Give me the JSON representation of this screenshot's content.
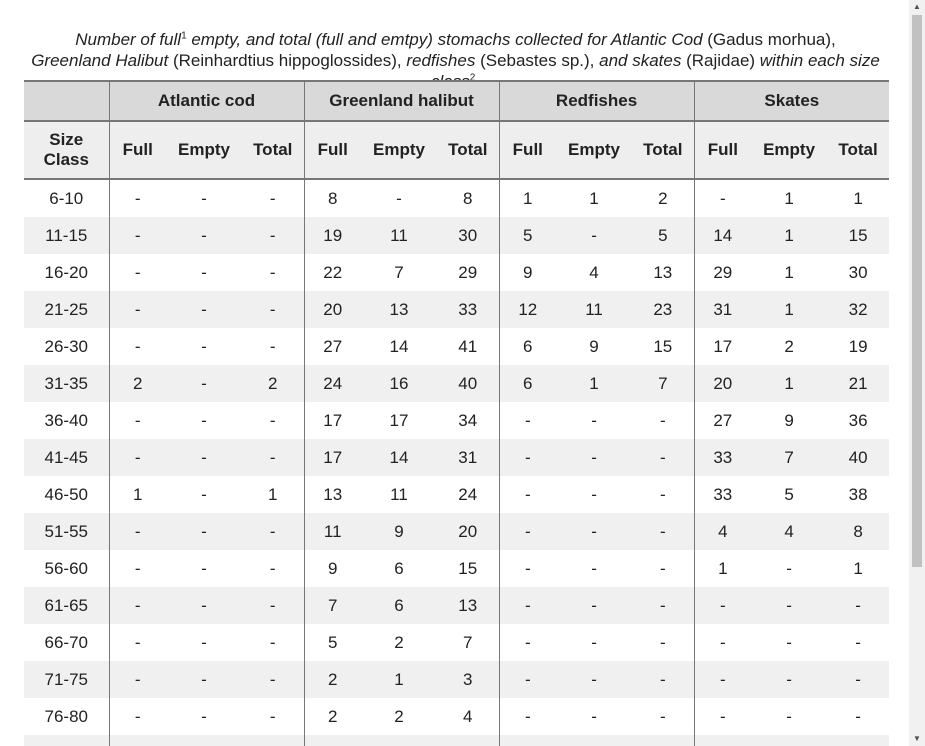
{
  "caption": {
    "p1": "Number of full",
    "sup1": "1",
    "p2": " empty, and total (full and emtpy) stomachs collected for Atlantic Cod ",
    "p3": "(Gadus morhua),",
    "p4": "Greenland Halibut",
    "p5": " (Reinhardtius hippoglossides), ",
    "p6": "redfishes",
    "p7": " (Sebastes sp.), ",
    "p8": "and skates",
    "p9": " (Rajidae) ",
    "p10": "within each size class",
    "sup2": "2",
    "p11": "."
  },
  "table": {
    "groups": [
      "Atlantic cod",
      "Greenland halibut",
      "Redfishes",
      "Skates"
    ],
    "size_class_header": [
      "Size",
      "Class"
    ],
    "sub_headers": [
      "Full",
      "Empty",
      "Total"
    ],
    "rows": [
      [
        "6-10",
        "-",
        "-",
        "-",
        "8",
        "-",
        "8",
        "1",
        "1",
        "2",
        "-",
        "1",
        "1"
      ],
      [
        "11-15",
        "-",
        "-",
        "-",
        "19",
        "11",
        "30",
        "5",
        "-",
        "5",
        "14",
        "1",
        "15"
      ],
      [
        "16-20",
        "-",
        "-",
        "-",
        "22",
        "7",
        "29",
        "9",
        "4",
        "13",
        "29",
        "1",
        "30"
      ],
      [
        "21-25",
        "-",
        "-",
        "-",
        "20",
        "13",
        "33",
        "12",
        "11",
        "23",
        "31",
        "1",
        "32"
      ],
      [
        "26-30",
        "-",
        "-",
        "-",
        "27",
        "14",
        "41",
        "6",
        "9",
        "15",
        "17",
        "2",
        "19"
      ],
      [
        "31-35",
        "2",
        "-",
        "2",
        "24",
        "16",
        "40",
        "6",
        "1",
        "7",
        "20",
        "1",
        "21"
      ],
      [
        "36-40",
        "-",
        "-",
        "-",
        "17",
        "17",
        "34",
        "-",
        "-",
        "-",
        "27",
        "9",
        "36"
      ],
      [
        "41-45",
        "-",
        "-",
        "-",
        "17",
        "14",
        "31",
        "-",
        "-",
        "-",
        "33",
        "7",
        "40"
      ],
      [
        "46-50",
        "1",
        "-",
        "1",
        "13",
        "11",
        "24",
        "-",
        "-",
        "-",
        "33",
        "5",
        "38"
      ],
      [
        "51-55",
        "-",
        "-",
        "-",
        "11",
        "9",
        "20",
        "-",
        "-",
        "-",
        "4",
        "4",
        "8"
      ],
      [
        "56-60",
        "-",
        "-",
        "-",
        "9",
        "6",
        "15",
        "-",
        "-",
        "-",
        "1",
        "-",
        "1"
      ],
      [
        "61-65",
        "-",
        "-",
        "-",
        "7",
        "6",
        "13",
        "-",
        "-",
        "-",
        "-",
        "-",
        "-"
      ],
      [
        "66-70",
        "-",
        "-",
        "-",
        "5",
        "2",
        "7",
        "-",
        "-",
        "-",
        "-",
        "-",
        "-"
      ],
      [
        "71-75",
        "-",
        "-",
        "-",
        "2",
        "1",
        "3",
        "-",
        "-",
        "-",
        "-",
        "-",
        "-"
      ],
      [
        "76-80",
        "-",
        "-",
        "-",
        "2",
        "2",
        "4",
        "-",
        "-",
        "-",
        "-",
        "-",
        "-"
      ],
      [
        "",
        "",
        "",
        "",
        "",
        "",
        "",
        "",
        "",
        "",
        "",
        "",
        ""
      ]
    ]
  },
  "scrollbar": {
    "up_glyph": "▲",
    "down_glyph": "▼"
  }
}
